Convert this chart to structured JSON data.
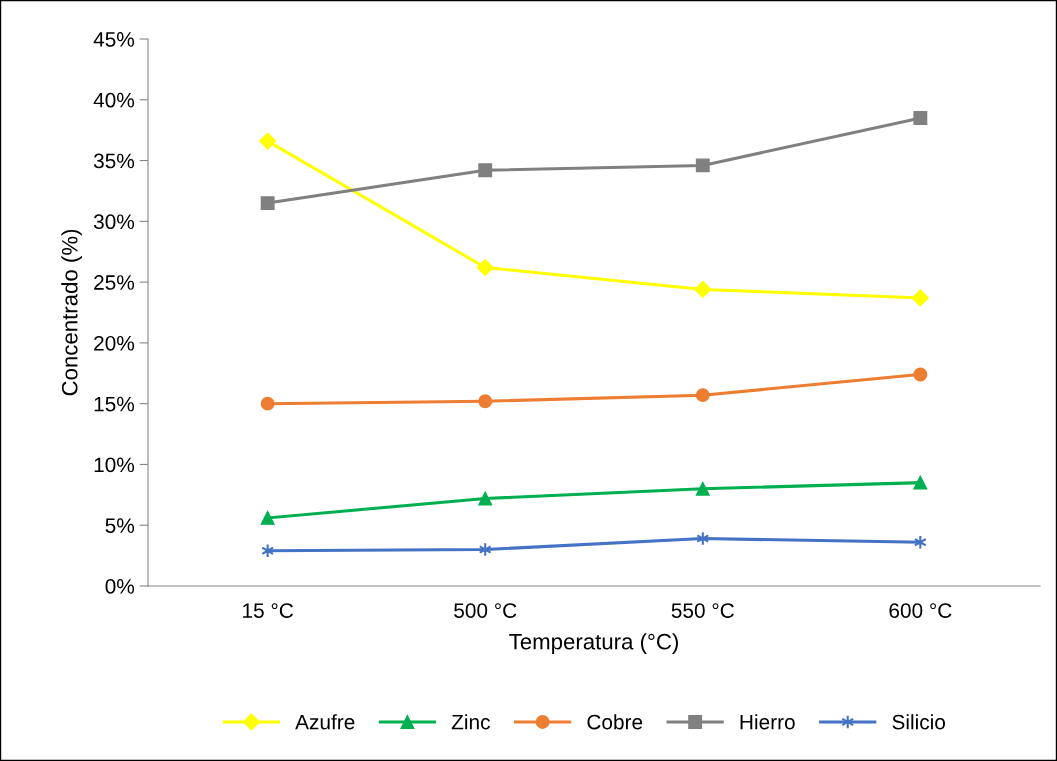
{
  "chart_data": {
    "type": "line",
    "xlabel": "Temperatura (°C)",
    "ylabel": "Concentrado (%)",
    "categories": [
      "15 °C",
      "500 °C",
      "550 °C",
      "600 °C"
    ],
    "series": [
      {
        "name": "Azufre",
        "color": "#ffff00",
        "marker": "diamond",
        "values": [
          36.6,
          26.2,
          24.4,
          23.7
        ]
      },
      {
        "name": "Zinc",
        "color": "#00b050",
        "marker": "triangle",
        "values": [
          5.6,
          7.2,
          8.0,
          8.5
        ]
      },
      {
        "name": "Cobre",
        "color": "#ed7d31",
        "marker": "circle",
        "values": [
          15.0,
          15.2,
          15.7,
          17.4
        ]
      },
      {
        "name": "Hierro",
        "color": "#808080",
        "marker": "square",
        "values": [
          31.5,
          34.2,
          34.6,
          38.5
        ]
      },
      {
        "name": "Silicio",
        "color": "#4472c4",
        "marker": "cross",
        "values": [
          2.9,
          3.0,
          3.9,
          3.6
        ]
      }
    ],
    "ylim": [
      0,
      45
    ],
    "yticks": [
      {
        "value": 0,
        "label": "0%"
      },
      {
        "value": 5,
        "label": "5%"
      },
      {
        "value": 10,
        "label": "10%"
      },
      {
        "value": 15,
        "label": "15%"
      },
      {
        "value": 20,
        "label": "20%"
      },
      {
        "value": 25,
        "label": "25%"
      },
      {
        "value": 30,
        "label": "30%"
      },
      {
        "value": 35,
        "label": "35%"
      },
      {
        "value": 40,
        "label": "40%"
      },
      {
        "value": 45,
        "label": "45%"
      }
    ],
    "grid": false,
    "legend": "bottom"
  }
}
